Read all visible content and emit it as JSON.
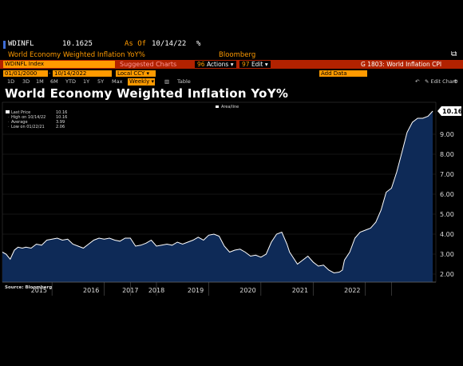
{
  "header": {
    "ticker": "WDINFL",
    "price": "10.1625",
    "as_of_label": "As Of",
    "as_of_date": "10/14/22",
    "percent_sign": "%",
    "subtitle": "World Economy Weighted Inflation YoY%",
    "source": "Bloomberg"
  },
  "toolbar": {
    "security": "WDINFL Index",
    "suggested": "Suggested Charts",
    "actions_label": "Actions",
    "actions_num": "96",
    "edit_label": "Edit",
    "edit_num": "97",
    "page_info": "G 1803: World Inflation CPI"
  },
  "dates": {
    "start": "01/01/2000",
    "end": "10/14/2022",
    "currency": "Local CCY",
    "add_data": "Add Data",
    "periods": [
      "1D",
      "3D",
      "1M",
      "6M",
      "YTD",
      "1Y",
      "5Y",
      "Max"
    ],
    "frequency": "Weekly",
    "table": "Table",
    "edit_chart": "Edit Chart"
  },
  "chart_title": "World Economy Weighted Inflation YoY%",
  "legend": {
    "area_label": "Area/line",
    "last_price": "Last Price",
    "last_price_val": "10.16",
    "high": "High on 10/14/22",
    "high_val": "10.16",
    "average": "Average",
    "average_val": "3.99",
    "low": "Low on 01/22/21",
    "low_val": "2.06"
  },
  "footer": {
    "source_note": "Source: Bloomberg"
  },
  "colors": {
    "area_fill": "#0e2a57",
    "line": "#ffffff",
    "label_box": "#ffffff",
    "accent": "#ff9a00",
    "toolbar_red": "#b22200"
  },
  "chart_data": {
    "type": "area",
    "title": "World Economy Weighted Inflation YoY%",
    "ylim": [
      1.6,
      10.6
    ],
    "y_ticks": [
      "2.00",
      "3.00",
      "4.00",
      "5.00",
      "6.00",
      "7.00",
      "8.00",
      "9.00"
    ],
    "x_ticks": [
      "2015",
      "2016",
      "2017",
      "2018",
      "2019",
      "2020",
      "2021",
      "2022"
    ],
    "x_range": [
      2014.55,
      2022.85
    ],
    "last_value": "10.16",
    "grid": true,
    "legend_position": "top-left",
    "series": [
      {
        "name": "Last Price",
        "x": [
          2014.55,
          2014.62,
          2014.7,
          2014.78,
          2014.85,
          2014.93,
          2015.0,
          2015.1,
          2015.2,
          2015.3,
          2015.4,
          2015.5,
          2015.6,
          2015.7,
          2015.8,
          2015.9,
          2016.0,
          2016.1,
          2016.2,
          2016.3,
          2016.4,
          2016.5,
          2016.6,
          2016.7,
          2016.8,
          2016.9,
          2017.0,
          2017.1,
          2017.2,
          2017.3,
          2017.4,
          2017.5,
          2017.6,
          2017.7,
          2017.8,
          2017.9,
          2018.0,
          2018.1,
          2018.2,
          2018.3,
          2018.4,
          2018.5,
          2018.6,
          2018.7,
          2018.8,
          2018.9,
          2019.0,
          2019.1,
          2019.2,
          2019.3,
          2019.4,
          2019.5,
          2019.6,
          2019.7,
          2019.8,
          2019.9,
          2020.0,
          2020.05,
          2020.1,
          2020.2,
          2020.3,
          2020.4,
          2020.5,
          2020.6,
          2020.7,
          2020.8,
          2020.9,
          2021.0,
          2021.06,
          2021.1,
          2021.2,
          2021.3,
          2021.4,
          2021.5,
          2021.6,
          2021.7,
          2021.8,
          2021.9,
          2022.0,
          2022.1,
          2022.2,
          2022.3,
          2022.4,
          2022.5,
          2022.6,
          2022.7,
          2022.79
        ],
        "y": [
          3.1,
          3.0,
          2.75,
          3.2,
          3.35,
          3.3,
          3.35,
          3.3,
          3.5,
          3.45,
          3.7,
          3.75,
          3.8,
          3.7,
          3.75,
          3.5,
          3.4,
          3.3,
          3.5,
          3.7,
          3.8,
          3.75,
          3.8,
          3.7,
          3.65,
          3.8,
          3.8,
          3.4,
          3.45,
          3.55,
          3.7,
          3.4,
          3.45,
          3.5,
          3.45,
          3.6,
          3.5,
          3.6,
          3.7,
          3.85,
          3.7,
          3.95,
          4.0,
          3.9,
          3.4,
          3.1,
          3.2,
          3.25,
          3.1,
          2.9,
          2.95,
          2.85,
          3.0,
          3.6,
          4.0,
          4.1,
          3.5,
          3.1,
          2.9,
          2.5,
          2.7,
          2.9,
          2.6,
          2.4,
          2.45,
          2.2,
          2.06,
          2.1,
          2.2,
          2.7,
          3.1,
          3.8,
          4.1,
          4.2,
          4.3,
          4.6,
          5.2,
          6.1,
          6.3,
          7.1,
          8.1,
          9.1,
          9.6,
          9.8,
          9.8,
          9.9,
          10.16
        ]
      }
    ]
  }
}
